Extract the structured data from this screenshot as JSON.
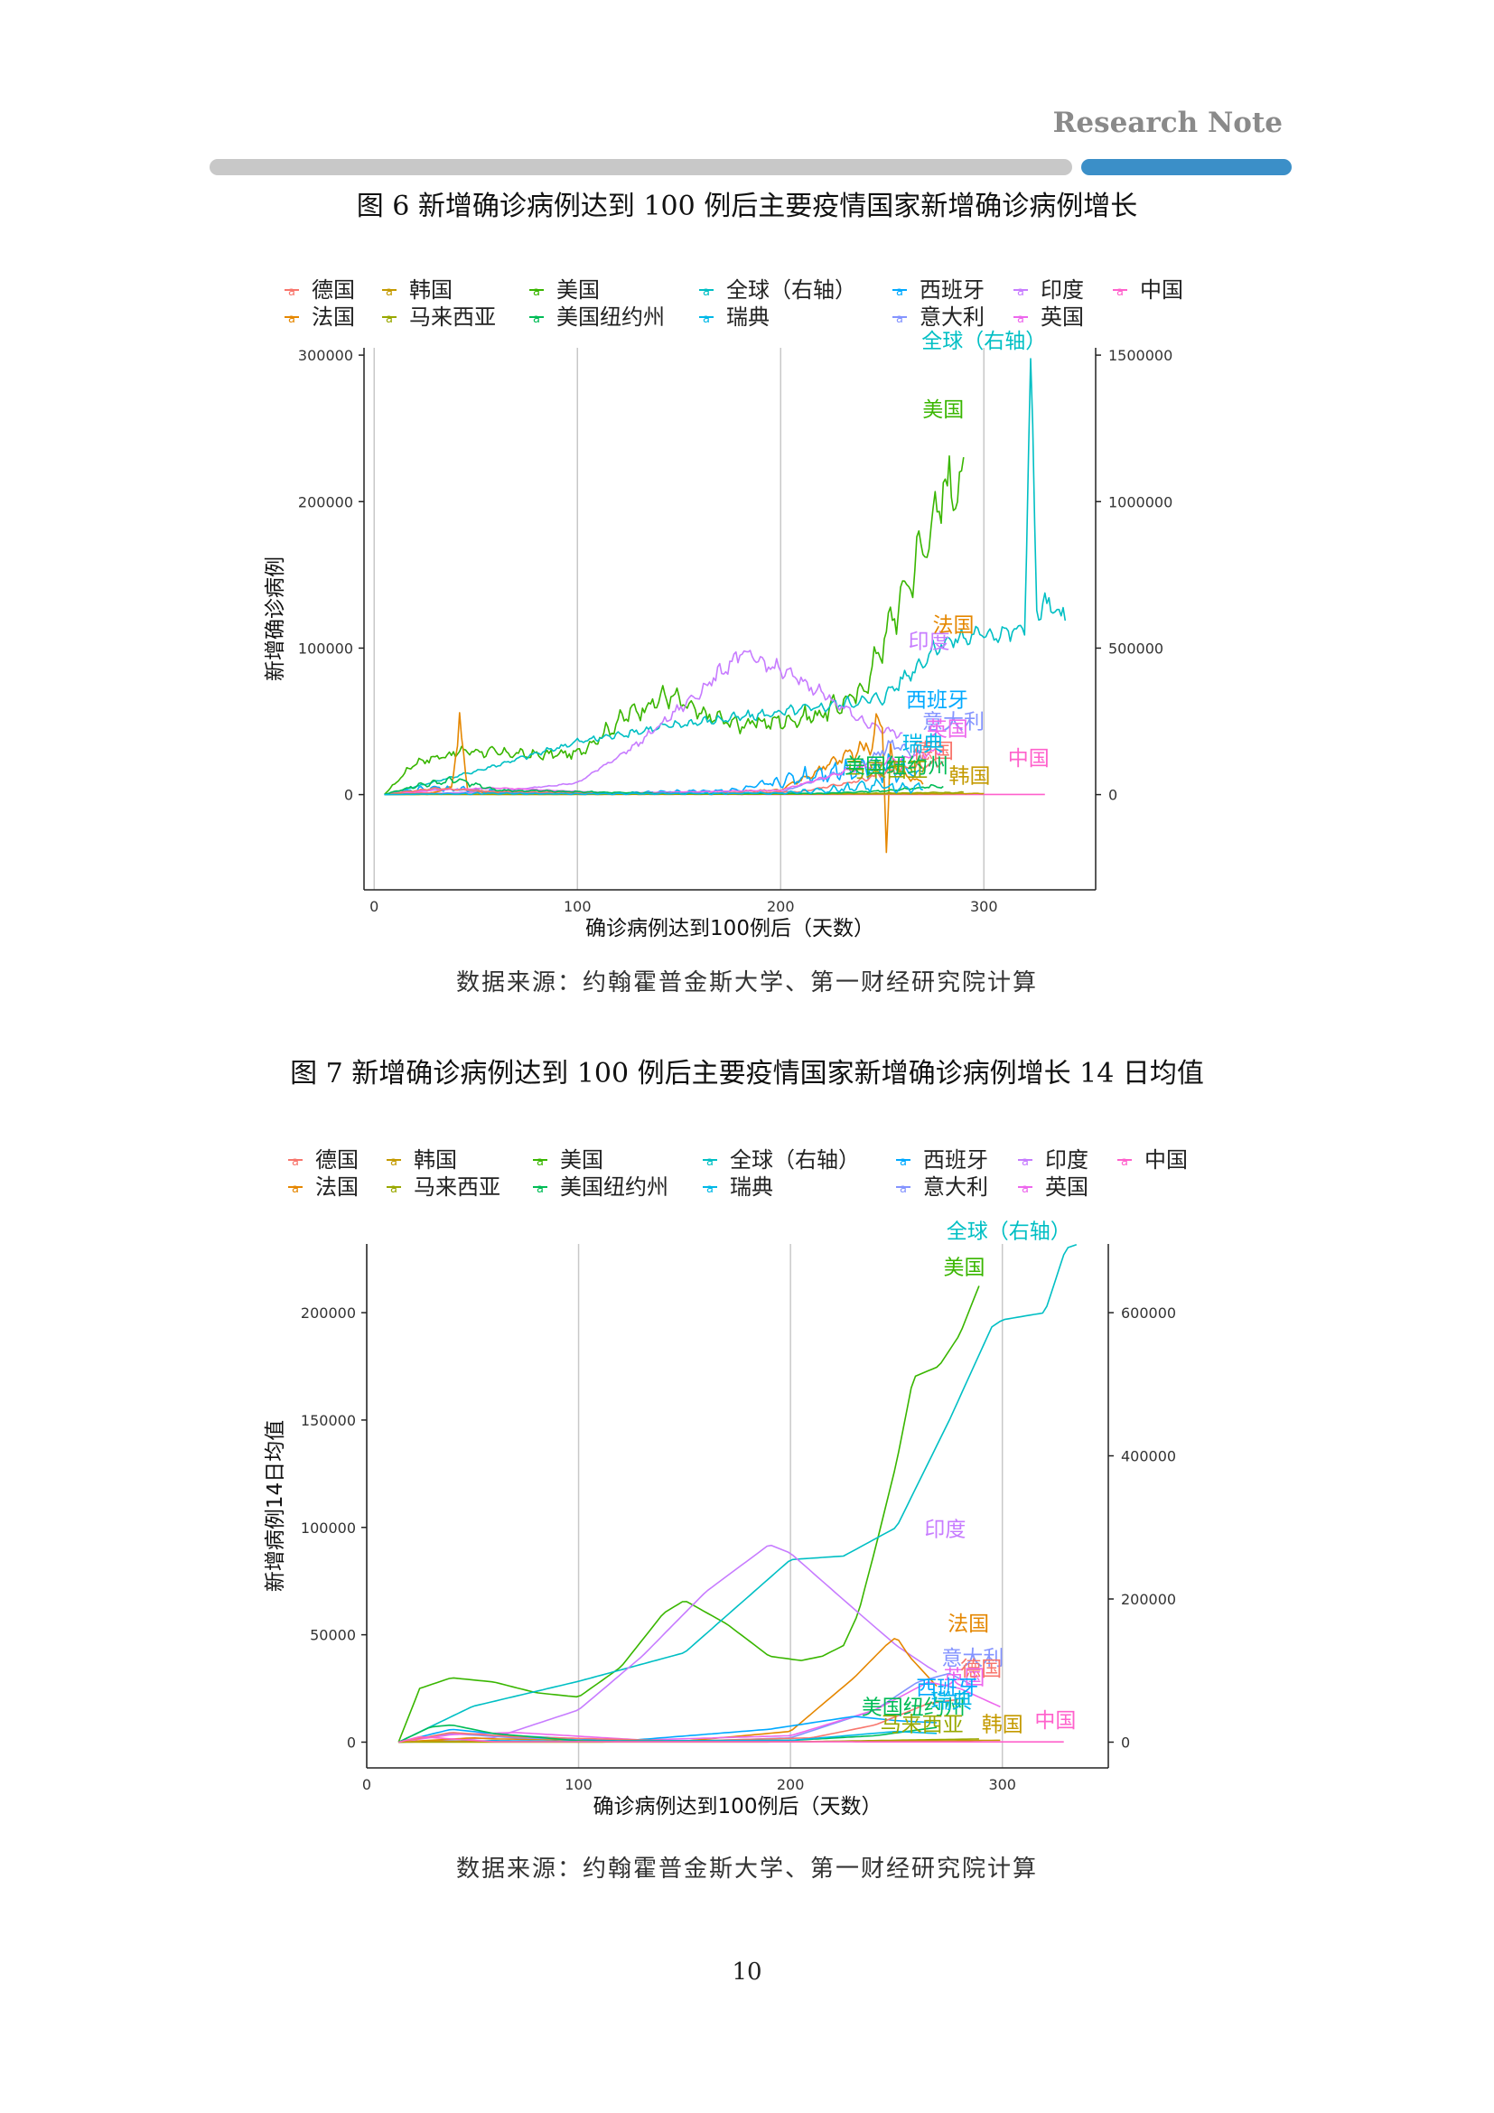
{
  "header": {
    "brand": "Research Note"
  },
  "page_number": "10",
  "colors": {
    "rule_gray": "#c8c8c8",
    "rule_blue": "#3b8fc8",
    "grid": "#c8c8c8",
    "axis": "#222222"
  },
  "legend": {
    "glyph": "a",
    "row1": [
      {
        "label": "德国",
        "color": "#F8766D"
      },
      {
        "label": "韩国",
        "color": "#C49A00"
      },
      {
        "label": "美国",
        "color": "#39B600"
      },
      {
        "label": "全球（右轴）",
        "color": "#00BFC4"
      },
      {
        "label": "西班牙",
        "color": "#00A9FF"
      },
      {
        "label": "印度",
        "color": "#C77CFF"
      },
      {
        "label": "中国",
        "color": "#FF61CC"
      }
    ],
    "row2": [
      {
        "label": "法国",
        "color": "#E58700"
      },
      {
        "label": "马来西亚",
        "color": "#99A800"
      },
      {
        "label": "美国纽约州",
        "color": "#00BC56"
      },
      {
        "label": "瑞典",
        "color": "#00B8E7"
      },
      {
        "label": "意大利",
        "color": "#8494FF"
      },
      {
        "label": "英国",
        "color": "#ED68ED"
      }
    ]
  },
  "figure6": {
    "title": "图 6  新增确诊病例达到 100 例后主要疫情国家新增确诊病例增长",
    "source": "数据来源：约翰霍普金斯大学、第一财经研究院计算"
  },
  "figure7": {
    "title": "图 7  新增确诊病例达到 100 例后主要疫情国家新增确诊病例增长 14 日均值",
    "source": "数据来源：约翰霍普金斯大学、第一财经研究院计算"
  },
  "chart_data": [
    {
      "type": "line",
      "title": "图 6  新增确诊病例达到 100 例后主要疫情国家新增确诊病例增长",
      "xlabel": "确诊病例达到100例后（天数）",
      "ylabel": "新增确诊病例",
      "xlim": [
        -5,
        355
      ],
      "ylim": [
        -65000,
        305000
      ],
      "y2lim": [
        -325000,
        1525000
      ],
      "x_ticks": [
        "0",
        "100",
        "200",
        "300"
      ],
      "y_ticks": [
        "0",
        "100000",
        "200000",
        "300000"
      ],
      "y2_ticks": [
        "0",
        "500000",
        "1000000",
        "1500000"
      ],
      "grid": "vertical",
      "legend_position": "top",
      "noise": true,
      "series": [
        {
          "name": "美国",
          "color": "#39B600",
          "label": "美国",
          "label_at": [
            280,
            258000
          ],
          "x": [
            5,
            20,
            45,
            80,
            100,
            125,
            145,
            160,
            180,
            200,
            220,
            240,
            255,
            270,
            285,
            290
          ],
          "y": [
            0,
            22000,
            30000,
            27000,
            28000,
            55000,
            68000,
            55000,
            48000,
            50000,
            55000,
            70000,
            120000,
            170000,
            220000,
            210000
          ],
          "amp": 0.15
        },
        {
          "name": "全球（右轴）",
          "color": "#00BFC4",
          "axis": "right",
          "label": "全球（右轴）",
          "label_at": [
            300,
            1525000
          ],
          "x": [
            5,
            50,
            100,
            150,
            200,
            250,
            280,
            300,
            320,
            323,
            326,
            330,
            340
          ],
          "y": [
            0,
            80000,
            180000,
            240000,
            280000,
            330000,
            520000,
            550000,
            560000,
            1500000,
            620000,
            650000,
            600000
          ],
          "amp": 0.08
        },
        {
          "name": "印度",
          "color": "#C77CFF",
          "label": "印度",
          "label_at": [
            273,
            100000
          ],
          "x": [
            5,
            60,
            100,
            130,
            160,
            180,
            200,
            220,
            240,
            260
          ],
          "y": [
            0,
            2000,
            8000,
            35000,
            70000,
            96000,
            85000,
            70000,
            50000,
            40000
          ],
          "amp": 0.08
        },
        {
          "name": "法国",
          "color": "#E58700",
          "label": "法国",
          "label_at": [
            285,
            111000
          ],
          "x": [
            5,
            30,
            38,
            42,
            46,
            55,
            100,
            200,
            230,
            245,
            250,
            252,
            254,
            258,
            270
          ],
          "y": [
            0,
            1500,
            5000,
            50000,
            3000,
            1500,
            500,
            3000,
            25000,
            35000,
            60000,
            -45000,
            30000,
            15000,
            8000
          ],
          "amp": 0.25
        },
        {
          "name": "西班牙",
          "color": "#00A9FF",
          "label": "西班牙",
          "label_at": [
            277,
            60000
          ],
          "x": [
            5,
            30,
            60,
            100,
            180,
            220,
            250,
            270
          ],
          "y": [
            0,
            5000,
            2000,
            500,
            3000,
            15000,
            20000,
            15000
          ],
          "amp": 0.6
        },
        {
          "name": "意大利",
          "color": "#8494FF",
          "label": "意大利",
          "label_at": [
            285,
            45000
          ],
          "x": [
            5,
            30,
            60,
            150,
            200,
            240,
            255,
            270
          ],
          "y": [
            0,
            4000,
            2000,
            300,
            1500,
            20000,
            35000,
            25000
          ],
          "amp": 0.15
        },
        {
          "name": "英国",
          "color": "#ED68ED",
          "label": "英国",
          "label_at": [
            282,
            40000
          ],
          "x": [
            5,
            30,
            60,
            120,
            200,
            230,
            260,
            280
          ],
          "y": [
            0,
            3000,
            4500,
            1000,
            3000,
            15000,
            25000,
            30000
          ],
          "amp": 0.12
        },
        {
          "name": "中国",
          "color": "#FF61CC",
          "label": "中国",
          "label_at": [
            322,
            20000
          ],
          "x": [
            5,
            15,
            25,
            40,
            330
          ],
          "y": [
            0,
            2000,
            1000,
            200,
            100
          ],
          "amp": 0.05
        },
        {
          "name": "德国",
          "color": "#F8766D",
          "label": "德国",
          "label_at": [
            275,
            25000
          ],
          "x": [
            5,
            30,
            60,
            150,
            210,
            240,
            260,
            280
          ],
          "y": [
            0,
            4500,
            2000,
            500,
            2000,
            10000,
            18000,
            22000
          ],
          "amp": 0.2
        },
        {
          "name": "韩国",
          "color": "#C49A00",
          "label": "韩国",
          "label_at": [
            293,
            8000
          ],
          "x": [
            5,
            20,
            60,
            200,
            280,
            300
          ],
          "y": [
            0,
            600,
            200,
            300,
            500,
            800
          ],
          "amp": 0.3
        },
        {
          "name": "马来西亚",
          "color": "#99A800",
          "label": "马来西亚",
          "label_at": [
            252,
            12000
          ],
          "x": [
            5,
            200,
            250,
            290
          ],
          "y": [
            0,
            300,
            900,
            1500
          ],
          "amp": 0.3
        },
        {
          "name": "美国纽约州",
          "color": "#00BC56",
          "label": "美国纽约州",
          "label_at": [
            257,
            15000
          ],
          "x": [
            5,
            20,
            40,
            60,
            150,
            220,
            250,
            280
          ],
          "y": [
            0,
            6000,
            10000,
            3000,
            700,
            800,
            2500,
            6000
          ],
          "amp": 0.3
        },
        {
          "name": "瑞典",
          "color": "#00B8E7",
          "label": "瑞典",
          "label_at": [
            270,
            30000
          ],
          "x": [
            5,
            50,
            100,
            200,
            250,
            270
          ],
          "y": [
            0,
            800,
            500,
            1000,
            6000,
            4000
          ],
          "amp": 0.9
        }
      ]
    },
    {
      "type": "line",
      "title": "图 7  新增确诊病例达到 100 例后主要疫情国家新增确诊病例增长 14 日均值",
      "xlabel": "确诊病例达到100例后（天数）",
      "ylabel": "新增病例14日均值",
      "xlim": [
        0,
        350
      ],
      "ylim": [
        -12000,
        232000
      ],
      "y2lim": [
        -36000,
        696000
      ],
      "x_ticks": [
        "0",
        "100",
        "200",
        "300"
      ],
      "y_ticks": [
        "0",
        "50000",
        "100000",
        "150000",
        "200000"
      ],
      "y2_ticks": [
        "0",
        "200000",
        "400000",
        "600000"
      ],
      "grid": "vertical",
      "legend_position": "top",
      "noise": false,
      "series": [
        {
          "name": "美国",
          "color": "#39B600",
          "label": "美国",
          "label_at": [
            282,
            218000
          ],
          "x": [
            15,
            25,
            40,
            60,
            80,
            100,
            120,
            140,
            150,
            170,
            190,
            205,
            215,
            225,
            232,
            240,
            250,
            258,
            270,
            280,
            290
          ],
          "y": [
            0,
            25000,
            30000,
            28000,
            23000,
            21000,
            35000,
            60000,
            66000,
            55000,
            40000,
            38000,
            40000,
            45000,
            60000,
            90000,
            130000,
            170000,
            175000,
            190000,
            215000
          ]
        },
        {
          "name": "全球（右轴）",
          "color": "#00BFC4",
          "axis": "right",
          "label": "全球（右轴）",
          "label_at": [
            303,
            704000
          ],
          "x": [
            15,
            50,
            100,
            150,
            200,
            225,
            250,
            275,
            295,
            300,
            320,
            330,
            335
          ],
          "y": [
            0,
            50000,
            85000,
            125000,
            255000,
            260000,
            300000,
            450000,
            580000,
            590000,
            600000,
            690000,
            695000
          ]
        },
        {
          "name": "印度",
          "color": "#C77CFF",
          "label": "印度",
          "label_at": [
            273,
            96000
          ],
          "x": [
            15,
            60,
            100,
            130,
            160,
            190,
            200,
            215,
            230,
            250,
            265,
            270
          ],
          "y": [
            0,
            2000,
            15000,
            40000,
            70000,
            92000,
            88000,
            75000,
            62000,
            45000,
            35000,
            32000
          ]
        },
        {
          "name": "法国",
          "color": "#E58700",
          "label": "法国",
          "label_at": [
            284,
            52000
          ],
          "x": [
            15,
            50,
            60,
            150,
            200,
            230,
            245,
            250,
            256,
            270
          ],
          "y": [
            0,
            2000,
            1500,
            500,
            5000,
            30000,
            45000,
            49000,
            40000,
            25000
          ]
        },
        {
          "name": "意大利",
          "color": "#8494FF",
          "label": "意大利",
          "label_at": [
            286,
            36000
          ],
          "x": [
            15,
            40,
            70,
            150,
            200,
            240,
            260,
            275,
            285
          ],
          "y": [
            0,
            4000,
            2000,
            300,
            2000,
            15000,
            28000,
            32000,
            27000
          ]
        },
        {
          "name": "英国",
          "color": "#ED68ED",
          "label": "英国",
          "label_at": [
            282,
            27000
          ],
          "x": [
            15,
            40,
            70,
            130,
            200,
            240,
            265,
            280,
            300
          ],
          "y": [
            0,
            3500,
            4500,
            1000,
            3000,
            15000,
            28000,
            25000,
            16000
          ]
        },
        {
          "name": "西班牙",
          "color": "#00A9FF",
          "label": "西班牙",
          "label_at": [
            274,
            22000
          ],
          "x": [
            15,
            40,
            70,
            120,
            190,
            230,
            250,
            270
          ],
          "y": [
            0,
            6000,
            3000,
            500,
            6000,
            12000,
            10000,
            9000
          ]
        },
        {
          "name": "德国",
          "color": "#F8766D",
          "label": "德国",
          "label_at": [
            290,
            31000
          ],
          "x": [
            15,
            40,
            70,
            150,
            210,
            240,
            265,
            280
          ],
          "y": [
            0,
            4500,
            2500,
            500,
            2000,
            8000,
            18000,
            20000
          ]
        },
        {
          "name": "美国纽约州",
          "color": "#00BC56",
          "label": "美国纽约州",
          "label_at": [
            258,
            13000
          ],
          "x": [
            15,
            30,
            40,
            60,
            100,
            200,
            240,
            270
          ],
          "y": [
            0,
            7000,
            8000,
            4000,
            600,
            800,
            3000,
            7000
          ]
        },
        {
          "name": "瑞典",
          "color": "#00B8E7",
          "label": "瑞典",
          "label_at": [
            276,
            16000
          ],
          "x": [
            15,
            60,
            100,
            200,
            250,
            270
          ],
          "y": [
            0,
            700,
            400,
            800,
            5000,
            4000
          ]
        },
        {
          "name": "马来西亚",
          "color": "#99A800",
          "label": "马来西亚",
          "label_at": [
            262,
            5000
          ],
          "x": [
            15,
            200,
            250,
            290
          ],
          "y": [
            0,
            100,
            900,
            1500
          ]
        },
        {
          "name": "韩国",
          "color": "#C49A00",
          "label": "韩国",
          "label_at": [
            300,
            5000
          ],
          "x": [
            15,
            30,
            60,
            200,
            280,
            300
          ],
          "y": [
            0,
            500,
            200,
            200,
            700,
            900
          ]
        },
        {
          "name": "中国",
          "color": "#FF61CC",
          "label": "中国",
          "label_at": [
            325,
            7000
          ],
          "x": [
            15,
            25,
            40,
            60,
            330
          ],
          "y": [
            0,
            2500,
            1500,
            200,
            100
          ]
        }
      ]
    }
  ]
}
